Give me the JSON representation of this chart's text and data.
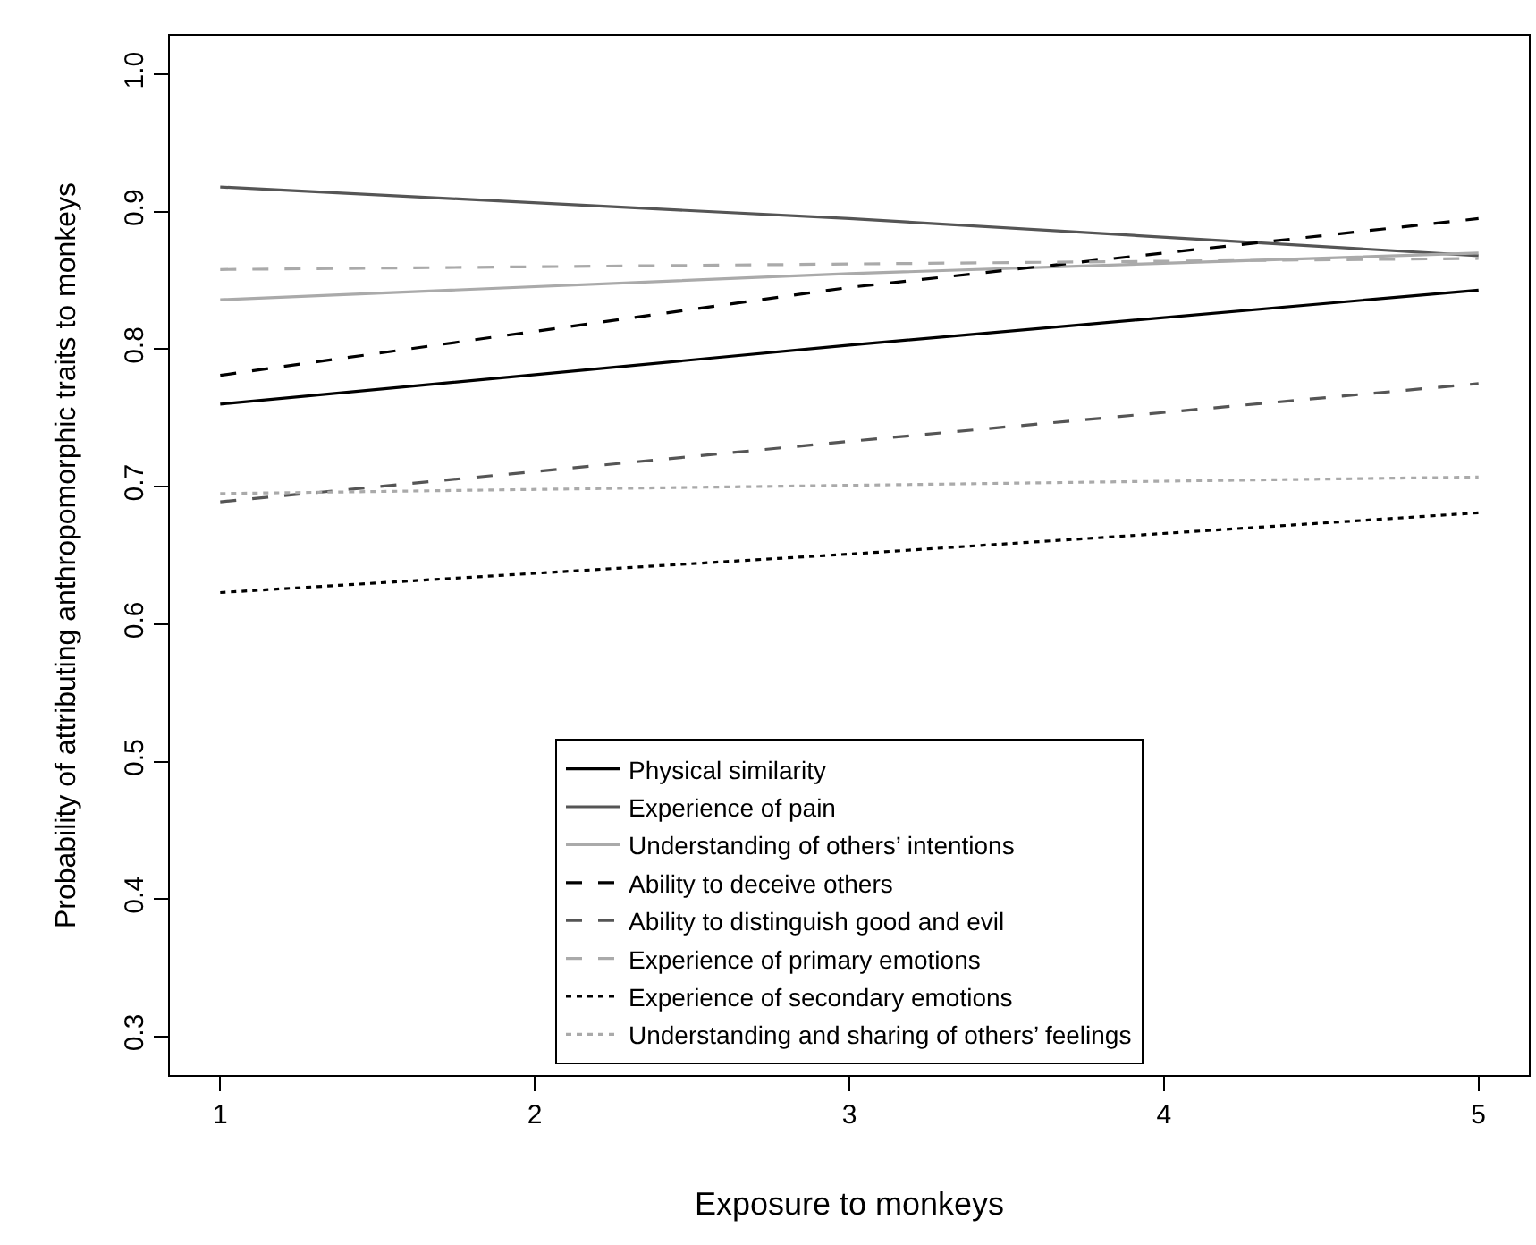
{
  "chart_data": {
    "type": "line",
    "xlabel": "Exposure to monkeys",
    "ylabel": "Probability of attributing anthropomorphic traits to monkeys",
    "x": [
      1,
      3,
      5
    ],
    "xlim": [
      0.84,
      5.16
    ],
    "xticks": [
      1,
      2,
      3,
      4,
      5
    ],
    "ylim": [
      0.272,
      1.028
    ],
    "yticks": [
      {
        "value": 0.3,
        "label": "0.3"
      },
      {
        "value": 0.4,
        "label": "0.4"
      },
      {
        "value": 0.5,
        "label": "0.5"
      },
      {
        "value": 0.6,
        "label": "0.6"
      },
      {
        "value": 0.7,
        "label": "0.7"
      },
      {
        "value": 0.8,
        "label": "0.8"
      },
      {
        "value": 0.9,
        "label": "0.9"
      },
      {
        "value": 1.0,
        "label": "1.0"
      }
    ],
    "grid": false,
    "legend": "bottom",
    "marker": "none",
    "series": [
      {
        "name": "Physical similarity",
        "color": "#000000",
        "line_style": "solid",
        "values": [
          0.76,
          0.803,
          0.843
        ]
      },
      {
        "name": "Experience of pain",
        "color": "#555555",
        "line_style": "solid",
        "values": [
          0.918,
          0.895,
          0.868
        ]
      },
      {
        "name": "Understanding of others’ intentions",
        "color": "#aaaaaa",
        "line_style": "solid",
        "values": [
          0.836,
          0.855,
          0.87
        ]
      },
      {
        "name": "Ability to deceive others",
        "color": "#000000",
        "line_style": "dashed",
        "values": [
          0.781,
          0.845,
          0.895
        ]
      },
      {
        "name": "Ability to distinguish good and evil",
        "color": "#555555",
        "line_style": "dashed",
        "values": [
          0.689,
          0.733,
          0.775
        ]
      },
      {
        "name": "Experience of primary emotions",
        "color": "#aaaaaa",
        "line_style": "dashed",
        "values": [
          0.858,
          0.862,
          0.866
        ]
      },
      {
        "name": "Experience of secondary emotions",
        "color": "#000000",
        "line_style": "dotted",
        "values": [
          0.623,
          0.651,
          0.681
        ]
      },
      {
        "name": "Understanding and sharing of others’ feelings",
        "color": "#aaaaaa",
        "line_style": "dotted",
        "values": [
          0.695,
          0.701,
          0.707
        ]
      }
    ]
  }
}
